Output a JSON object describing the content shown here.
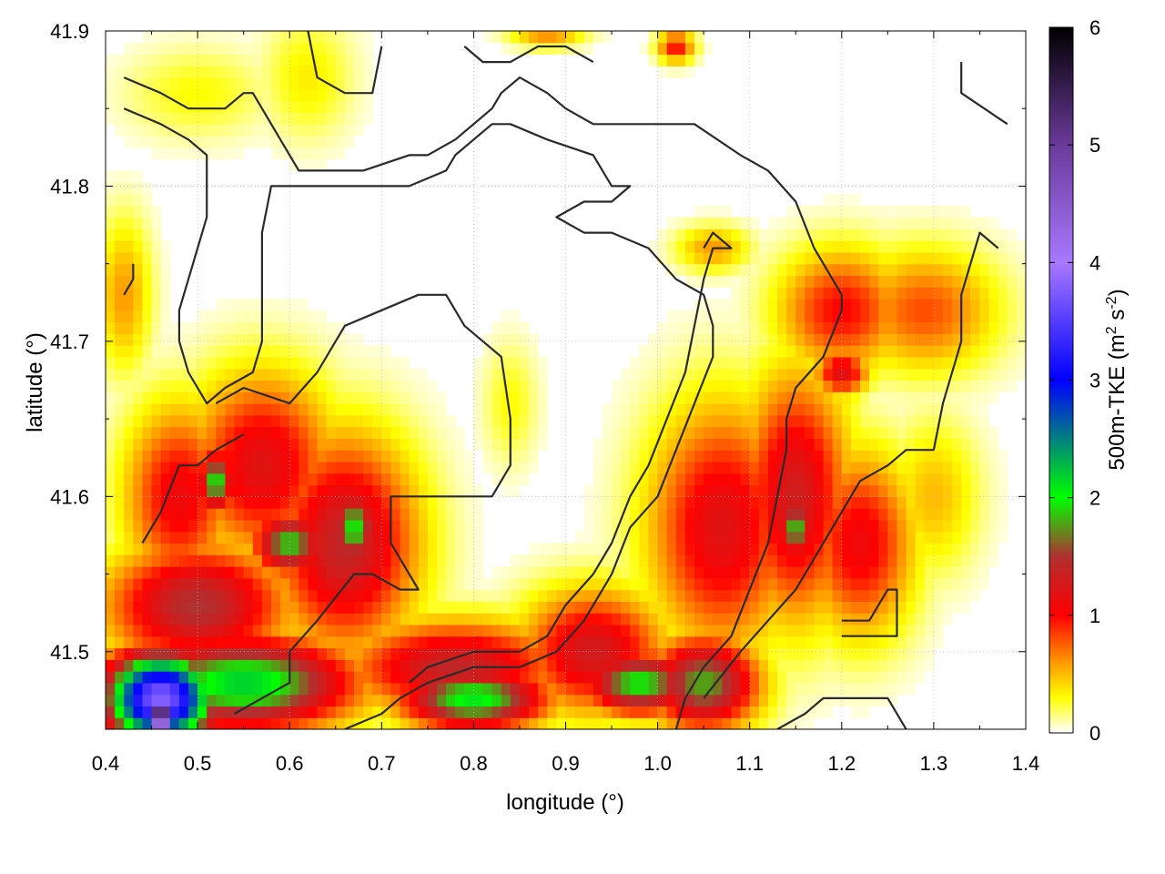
{
  "chart_data": {
    "type": "heatmap",
    "title": "",
    "xlabel": "longitude (°)",
    "ylabel": "latitude (°)",
    "colorbar_label_main": "500m-TKE (m",
    "colorbar_label_sup1": "2",
    "colorbar_label_mid": " s",
    "colorbar_label_sup2": "-2",
    "colorbar_label_end": ")",
    "xlim": [
      0.4,
      1.4
    ],
    "ylim": [
      41.45,
      41.9
    ],
    "zlim": [
      0,
      6
    ],
    "x_ticks": [
      {
        "value": 0.4,
        "label": "0.4"
      },
      {
        "value": 0.5,
        "label": "0.5"
      },
      {
        "value": 0.6,
        "label": "0.6"
      },
      {
        "value": 0.7,
        "label": "0.7"
      },
      {
        "value": 0.8,
        "label": "0.8"
      },
      {
        "value": 0.9,
        "label": "0.9"
      },
      {
        "value": 1.0,
        "label": "1.0"
      },
      {
        "value": 1.1,
        "label": "1.1"
      },
      {
        "value": 1.2,
        "label": "1.2"
      },
      {
        "value": 1.3,
        "label": "1.3"
      },
      {
        "value": 1.4,
        "label": "1.4"
      }
    ],
    "y_ticks": [
      {
        "value": 41.5,
        "label": "41.5"
      },
      {
        "value": 41.6,
        "label": "41.6"
      },
      {
        "value": 41.7,
        "label": "41.7"
      },
      {
        "value": 41.8,
        "label": "41.8"
      },
      {
        "value": 41.9,
        "label": "41.9"
      }
    ],
    "cb_ticks": [
      {
        "value": 0,
        "label": "0"
      },
      {
        "value": 1,
        "label": "1"
      },
      {
        "value": 2,
        "label": "2"
      },
      {
        "value": 3,
        "label": "3"
      },
      {
        "value": 4,
        "label": "4"
      },
      {
        "value": 5,
        "label": "5"
      },
      {
        "value": 6,
        "label": "6"
      }
    ],
    "grid": true,
    "colormap": [
      {
        "value": 0.0,
        "color": "#ffffff"
      },
      {
        "value": 0.3,
        "color": "#ffff00"
      },
      {
        "value": 0.6,
        "color": "#ff9900"
      },
      {
        "value": 1.0,
        "color": "#ff0000"
      },
      {
        "value": 1.5,
        "color": "#b03030"
      },
      {
        "value": 2.0,
        "color": "#00ff00"
      },
      {
        "value": 2.5,
        "color": "#008080"
      },
      {
        "value": 3.0,
        "color": "#0000ff"
      },
      {
        "value": 4.0,
        "color": "#a878ff"
      },
      {
        "value": 5.0,
        "color": "#6a3a9a"
      },
      {
        "value": 6.0,
        "color": "#000000"
      }
    ],
    "field_blobs": [
      {
        "lon": 0.5,
        "lat": 41.86,
        "rlon": 0.08,
        "rlat": 0.03,
        "v": 0.3
      },
      {
        "lon": 0.62,
        "lat": 41.87,
        "rlon": 0.05,
        "rlat": 0.04,
        "v": 0.35
      },
      {
        "lon": 0.42,
        "lat": 41.73,
        "rlon": 0.03,
        "rlat": 0.05,
        "v": 0.6
      },
      {
        "lon": 0.48,
        "lat": 41.6,
        "rlon": 0.06,
        "rlat": 0.06,
        "v": 1.1
      },
      {
        "lon": 0.57,
        "lat": 41.62,
        "rlon": 0.08,
        "rlat": 0.06,
        "v": 1.2
      },
      {
        "lon": 0.66,
        "lat": 41.57,
        "rlon": 0.08,
        "rlat": 0.07,
        "v": 1.4
      },
      {
        "lon": 0.6,
        "lat": 41.57,
        "rlon": 0.04,
        "rlat": 0.02,
        "v": 1.9
      },
      {
        "lon": 0.67,
        "lat": 41.58,
        "rlon": 0.025,
        "rlat": 0.025,
        "v": 2.0
      },
      {
        "lon": 0.52,
        "lat": 41.61,
        "rlon": 0.02,
        "rlat": 0.02,
        "v": 2.0
      },
      {
        "lon": 0.5,
        "lat": 41.53,
        "rlon": 0.1,
        "rlat": 0.04,
        "v": 1.5
      },
      {
        "lon": 0.55,
        "lat": 41.48,
        "rlon": 0.12,
        "rlat": 0.03,
        "v": 2.2
      },
      {
        "lon": 0.46,
        "lat": 41.47,
        "rlon": 0.06,
        "rlat": 0.03,
        "v": 3.8
      },
      {
        "lon": 0.46,
        "lat": 41.46,
        "rlon": 0.02,
        "rlat": 0.015,
        "v": 5.5
      },
      {
        "lon": 0.78,
        "lat": 41.49,
        "rlon": 0.12,
        "rlat": 0.03,
        "v": 1.4
      },
      {
        "lon": 0.8,
        "lat": 41.47,
        "rlon": 0.08,
        "rlat": 0.02,
        "v": 2.1
      },
      {
        "lon": 0.93,
        "lat": 41.5,
        "rlon": 0.08,
        "rlat": 0.04,
        "v": 1.3
      },
      {
        "lon": 0.98,
        "lat": 41.48,
        "rlon": 0.06,
        "rlat": 0.02,
        "v": 2.0
      },
      {
        "lon": 1.07,
        "lat": 41.58,
        "rlon": 0.08,
        "rlat": 0.08,
        "v": 1.2
      },
      {
        "lon": 1.05,
        "lat": 41.48,
        "rlon": 0.06,
        "rlat": 0.03,
        "v": 1.8
      },
      {
        "lon": 1.15,
        "lat": 41.6,
        "rlon": 0.06,
        "rlat": 0.08,
        "v": 1.3
      },
      {
        "lon": 1.15,
        "lat": 41.58,
        "rlon": 0.02,
        "rlat": 0.02,
        "v": 1.9
      },
      {
        "lon": 1.2,
        "lat": 41.72,
        "rlon": 0.07,
        "rlat": 0.04,
        "v": 1.0
      },
      {
        "lon": 1.29,
        "lat": 41.72,
        "rlon": 0.08,
        "rlat": 0.04,
        "v": 0.8
      },
      {
        "lon": 1.2,
        "lat": 41.68,
        "rlon": 0.03,
        "rlat": 0.015,
        "v": 1.2
      },
      {
        "lon": 1.22,
        "lat": 41.57,
        "rlon": 0.06,
        "rlat": 0.06,
        "v": 1.1
      },
      {
        "lon": 1.3,
        "lat": 41.6,
        "rlon": 0.05,
        "rlat": 0.05,
        "v": 0.5
      },
      {
        "lon": 1.06,
        "lat": 41.76,
        "rlon": 0.04,
        "rlat": 0.015,
        "v": 0.6
      },
      {
        "lon": 1.02,
        "lat": 41.89,
        "rlon": 0.02,
        "rlat": 0.01,
        "v": 1.0
      },
      {
        "lon": 0.88,
        "lat": 41.9,
        "rlon": 0.04,
        "rlat": 0.01,
        "v": 0.7
      },
      {
        "lon": 0.84,
        "lat": 41.66,
        "rlon": 0.03,
        "rlat": 0.04,
        "v": 0.3
      },
      {
        "lon": 1.06,
        "lat": 41.66,
        "rlon": 0.05,
        "rlat": 0.04,
        "v": 0.3
      },
      {
        "lon": 0.36,
        "lat": 41.5,
        "rlon": 0.0,
        "rlat": 0.0,
        "v": 0.0
      }
    ],
    "contours": [
      [
        [
          0.42,
          41.87
        ],
        [
          0.46,
          41.86
        ],
        [
          0.49,
          41.85
        ],
        [
          0.53,
          41.85
        ],
        [
          0.55,
          41.86
        ],
        [
          0.56,
          41.86
        ],
        [
          0.57,
          41.85
        ],
        [
          0.6,
          41.82
        ],
        [
          0.61,
          41.81
        ],
        [
          0.63,
          41.81
        ],
        [
          0.68,
          41.81
        ],
        [
          0.73,
          41.82
        ],
        [
          0.75,
          41.82
        ],
        [
          0.78,
          41.83
        ],
        [
          0.8,
          41.84
        ],
        [
          0.82,
          41.85
        ],
        [
          0.83,
          41.86
        ],
        [
          0.85,
          41.87
        ],
        [
          0.88,
          41.86
        ],
        [
          0.9,
          41.85
        ],
        [
          0.93,
          41.84
        ],
        [
          1.0,
          41.84
        ],
        [
          1.04,
          41.84
        ],
        [
          1.09,
          41.82
        ],
        [
          1.12,
          41.81
        ],
        [
          1.15,
          41.79
        ],
        [
          1.17,
          41.76
        ],
        [
          1.19,
          41.74
        ],
        [
          1.2,
          41.73
        ],
        [
          1.2,
          41.72
        ],
        [
          1.18,
          41.69
        ],
        [
          1.15,
          41.67
        ],
        [
          1.14,
          41.65
        ],
        [
          1.14,
          41.63
        ],
        [
          1.13,
          41.6
        ],
        [
          1.12,
          41.57
        ],
        [
          1.1,
          41.54
        ],
        [
          1.08,
          41.51
        ],
        [
          1.05,
          41.49
        ],
        [
          1.03,
          41.47
        ],
        [
          1.02,
          41.45
        ]
      ],
      [
        [
          0.42,
          41.85
        ],
        [
          0.46,
          41.84
        ],
        [
          0.49,
          41.83
        ],
        [
          0.51,
          41.82
        ],
        [
          0.51,
          41.8
        ],
        [
          0.51,
          41.78
        ],
        [
          0.49,
          41.74
        ],
        [
          0.48,
          41.72
        ],
        [
          0.48,
          41.7
        ],
        [
          0.49,
          41.68
        ],
        [
          0.51,
          41.66
        ],
        [
          0.53,
          41.67
        ],
        [
          0.56,
          41.68
        ],
        [
          0.57,
          41.7
        ],
        [
          0.57,
          41.74
        ],
        [
          0.57,
          41.77
        ],
        [
          0.58,
          41.8
        ],
        [
          0.6,
          41.8
        ],
        [
          0.63,
          41.8
        ],
        [
          0.68,
          41.8
        ],
        [
          0.73,
          41.8
        ],
        [
          0.77,
          41.81
        ],
        [
          0.78,
          41.82
        ],
        [
          0.8,
          41.83
        ],
        [
          0.82,
          41.84
        ],
        [
          0.84,
          41.84
        ],
        [
          0.88,
          41.83
        ],
        [
          0.93,
          41.82
        ],
        [
          0.95,
          41.8
        ],
        [
          0.97,
          41.8
        ],
        [
          0.95,
          41.79
        ],
        [
          0.92,
          41.79
        ],
        [
          0.89,
          41.78
        ],
        [
          0.92,
          41.77
        ],
        [
          0.95,
          41.77
        ],
        [
          0.99,
          41.76
        ],
        [
          1.02,
          41.74
        ],
        [
          1.05,
          41.73
        ],
        [
          1.06,
          41.71
        ],
        [
          1.06,
          41.69
        ],
        [
          1.04,
          41.66
        ],
        [
          1.02,
          41.63
        ],
        [
          1.0,
          41.6
        ],
        [
          0.97,
          41.58
        ],
        [
          0.95,
          41.55
        ],
        [
          0.92,
          41.52
        ],
        [
          0.89,
          41.5
        ],
        [
          0.85,
          41.49
        ],
        [
          0.8,
          41.49
        ],
        [
          0.75,
          41.48
        ],
        [
          0.72,
          41.47
        ],
        [
          0.7,
          41.46
        ],
        [
          0.66,
          41.45
        ]
      ],
      [
        [
          0.62,
          41.9
        ],
        [
          0.63,
          41.87
        ],
        [
          0.66,
          41.86
        ],
        [
          0.69,
          41.86
        ],
        [
          0.7,
          41.89
        ]
      ],
      [
        [
          0.79,
          41.89
        ],
        [
          0.81,
          41.88
        ],
        [
          0.84,
          41.88
        ],
        [
          0.87,
          41.89
        ],
        [
          0.9,
          41.89
        ],
        [
          0.93,
          41.88
        ]
      ],
      [
        [
          0.52,
          41.66
        ],
        [
          0.55,
          41.67
        ],
        [
          0.6,
          41.66
        ],
        [
          0.63,
          41.68
        ],
        [
          0.66,
          41.71
        ],
        [
          0.7,
          41.72
        ],
        [
          0.74,
          41.73
        ],
        [
          0.77,
          41.73
        ],
        [
          0.79,
          41.71
        ],
        [
          0.83,
          41.69
        ],
        [
          0.84,
          41.65
        ],
        [
          0.84,
          41.62
        ],
        [
          0.82,
          41.6
        ],
        [
          0.78,
          41.6
        ],
        [
          0.74,
          41.6
        ],
        [
          0.71,
          41.6
        ],
        [
          0.71,
          41.57
        ],
        [
          0.73,
          41.55
        ],
        [
          0.74,
          41.54
        ],
        [
          0.72,
          41.54
        ],
        [
          0.69,
          41.55
        ],
        [
          0.67,
          41.55
        ],
        [
          0.63,
          41.52
        ],
        [
          0.6,
          41.5
        ],
        [
          0.6,
          41.48
        ],
        [
          0.57,
          41.47
        ],
        [
          0.54,
          41.46
        ]
      ],
      [
        [
          0.44,
          41.57
        ],
        [
          0.45,
          41.58
        ],
        [
          0.46,
          41.59
        ],
        [
          0.48,
          41.62
        ],
        [
          0.5,
          41.62
        ],
        [
          0.52,
          41.63
        ],
        [
          0.55,
          41.64
        ]
      ],
      [
        [
          0.43,
          41.75
        ],
        [
          0.43,
          41.74
        ],
        [
          0.42,
          41.73
        ]
      ],
      [
        [
          0.73,
          41.48
        ],
        [
          0.75,
          41.49
        ],
        [
          0.8,
          41.5
        ],
        [
          0.85,
          41.5
        ],
        [
          0.88,
          41.51
        ],
        [
          0.9,
          41.53
        ],
        [
          0.93,
          41.55
        ],
        [
          0.95,
          41.57
        ],
        [
          0.97,
          41.6
        ],
        [
          0.99,
          41.62
        ],
        [
          1.01,
          41.65
        ],
        [
          1.03,
          41.68
        ],
        [
          1.04,
          41.71
        ],
        [
          1.05,
          41.74
        ],
        [
          1.06,
          41.76
        ],
        [
          1.08,
          41.76
        ],
        [
          1.06,
          41.77
        ],
        [
          1.05,
          41.76
        ]
      ],
      [
        [
          1.13,
          41.45
        ],
        [
          1.16,
          41.46
        ],
        [
          1.18,
          41.47
        ],
        [
          1.25,
          41.47
        ],
        [
          1.27,
          41.45
        ]
      ],
      [
        [
          1.2,
          41.52
        ],
        [
          1.23,
          41.52
        ],
        [
          1.25,
          41.54
        ],
        [
          1.26,
          41.54
        ],
        [
          1.26,
          41.51
        ],
        [
          1.2,
          41.51
        ]
      ],
      [
        [
          1.33,
          41.88
        ],
        [
          1.33,
          41.86
        ],
        [
          1.38,
          41.84
        ]
      ],
      [
        [
          1.37,
          41.76
        ],
        [
          1.35,
          41.77
        ],
        [
          1.33,
          41.73
        ],
        [
          1.33,
          41.7
        ],
        [
          1.32,
          41.68
        ],
        [
          1.31,
          41.66
        ],
        [
          1.3,
          41.63
        ],
        [
          1.27,
          41.63
        ],
        [
          1.25,
          41.62
        ],
        [
          1.22,
          41.61
        ],
        [
          1.2,
          41.59
        ],
        [
          1.17,
          41.56
        ],
        [
          1.15,
          41.54
        ],
        [
          1.12,
          41.52
        ],
        [
          1.09,
          41.5
        ],
        [
          1.05,
          41.47
        ]
      ]
    ]
  }
}
